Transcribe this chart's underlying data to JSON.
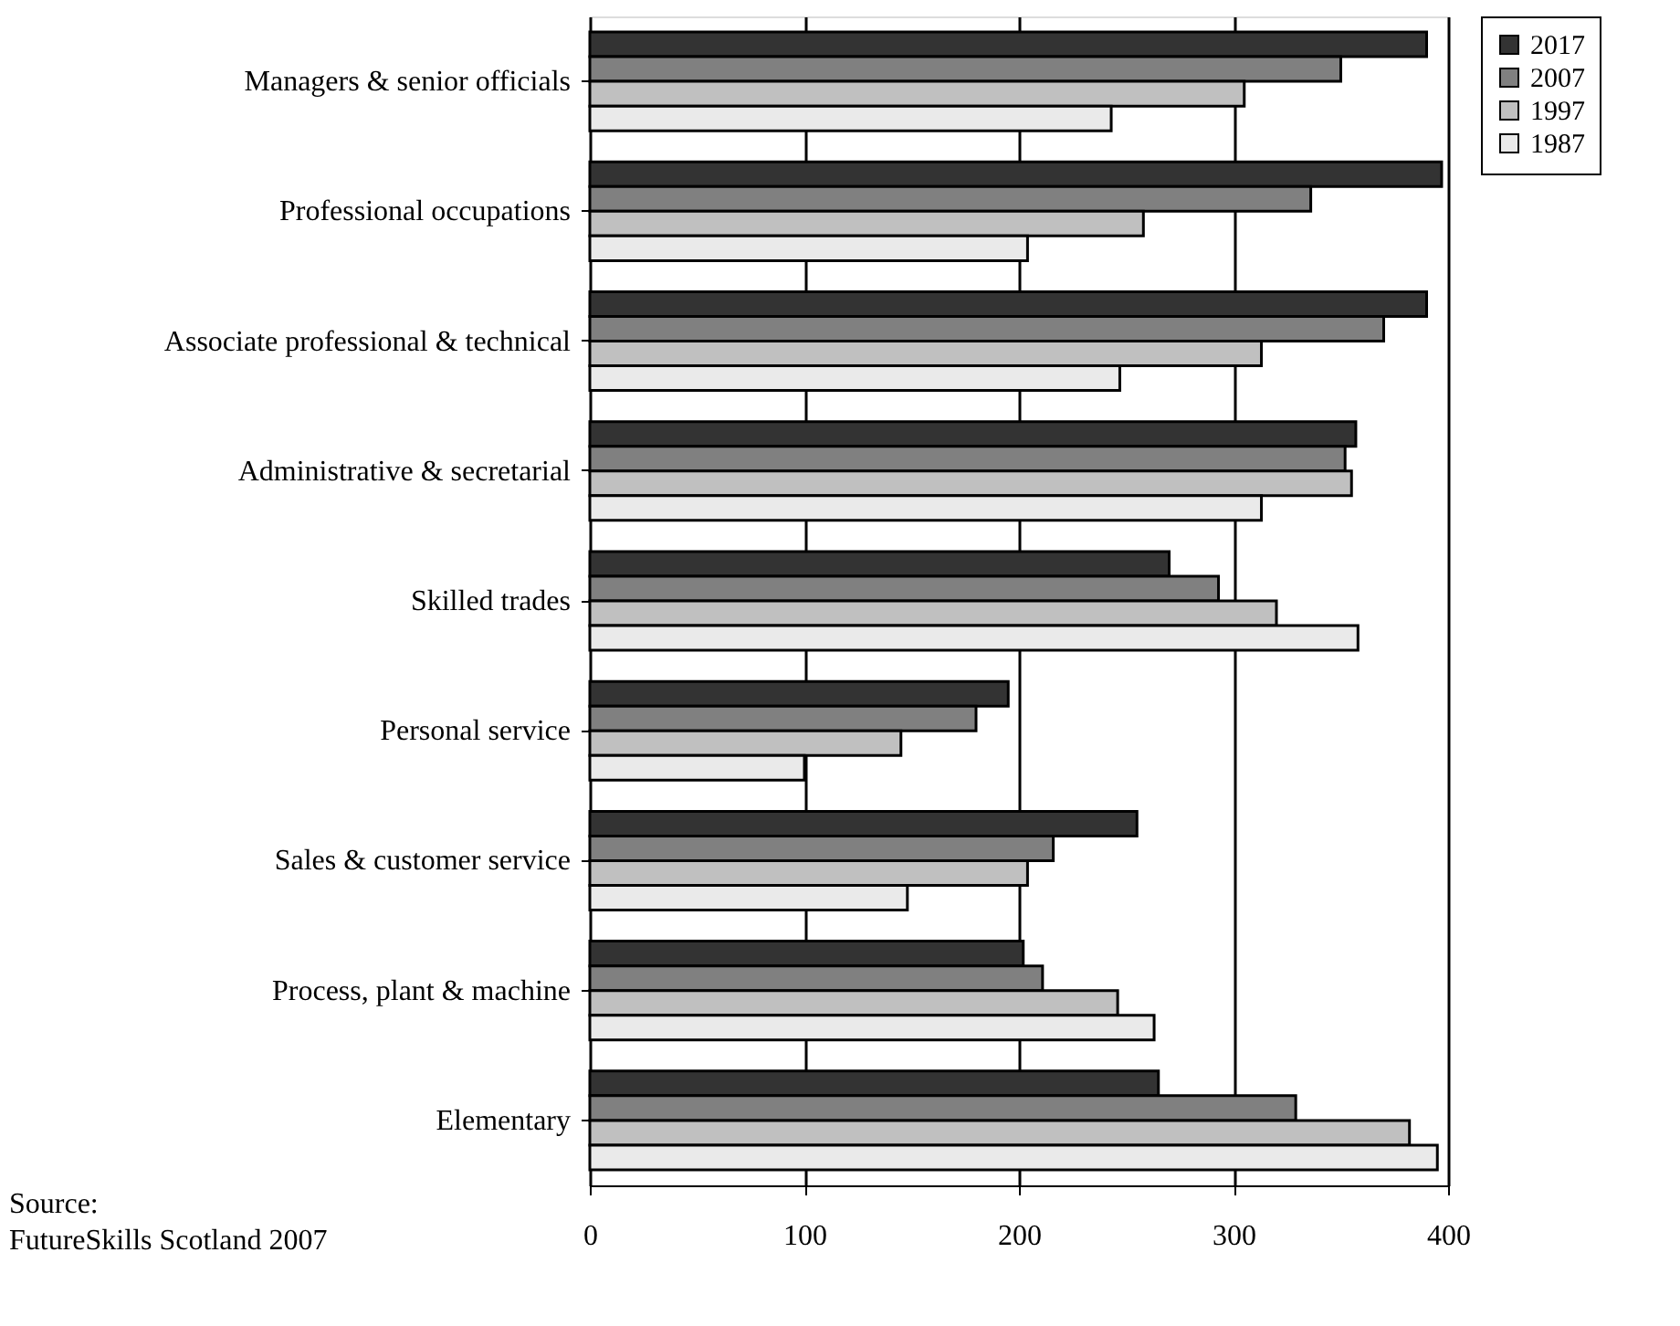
{
  "chart_data": {
    "type": "bar",
    "orientation": "horizontal",
    "categories": [
      "Managers & senior officials",
      "Professional occupations",
      "Associate professional & technical",
      "Administrative & secretarial",
      "Skilled trades",
      "Personal service",
      "Sales & customer service",
      "Process, plant & machine",
      "Elementary"
    ],
    "series": [
      {
        "name": "2017",
        "color": "#333333",
        "values": [
          390,
          397,
          390,
          357,
          270,
          195,
          255,
          202,
          265
        ]
      },
      {
        "name": "2007",
        "color": "#808080",
        "values": [
          350,
          336,
          370,
          352,
          293,
          180,
          216,
          211,
          329
        ]
      },
      {
        "name": "1997",
        "color": "#c0c0c0",
        "values": [
          305,
          258,
          313,
          355,
          320,
          145,
          204,
          246,
          382
        ]
      },
      {
        "name": "1987",
        "color": "#eaeaea",
        "values": [
          243,
          204,
          247,
          313,
          358,
          100,
          148,
          263,
          395
        ]
      }
    ],
    "xlim": [
      0,
      400
    ],
    "xticks": [
      0,
      100,
      200,
      300,
      400
    ],
    "grid": "x",
    "legend": "right",
    "annotations": [
      "Source:",
      "FutureSkills Scotland 2007"
    ]
  }
}
